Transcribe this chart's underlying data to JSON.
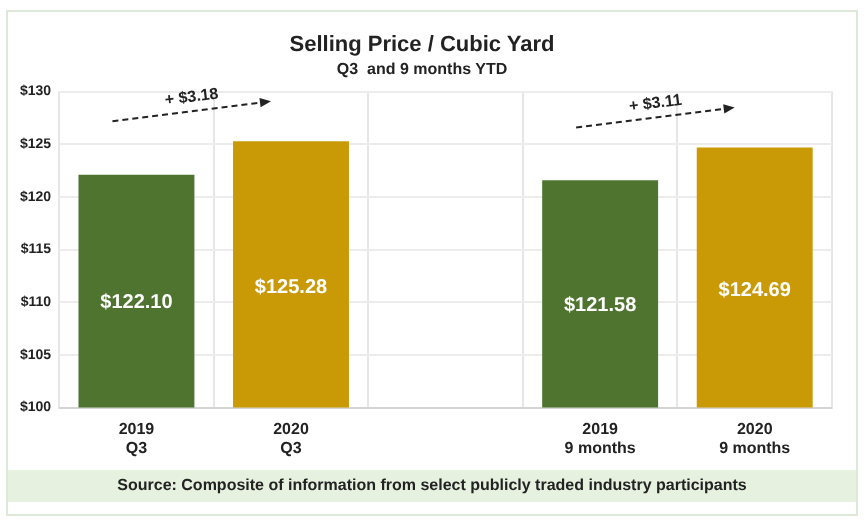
{
  "chart_data": {
    "type": "bar",
    "title": "Selling Price / Cubic Yard",
    "subtitle": "Q3  and 9 months YTD",
    "categories": [
      "2019\nQ3",
      "2020\nQ3",
      null,
      "2019\n9 months",
      "2020\n9 months"
    ],
    "values": [
      122.1,
      125.28,
      null,
      121.58,
      124.69
    ],
    "colors": [
      "#4e7430",
      "#c99a06",
      null,
      "#4e7430",
      "#c99a06"
    ],
    "value_labels": [
      "$122.10",
      "$125.28",
      null,
      "$121.58",
      "$124.69"
    ],
    "ylim": [
      100,
      130
    ],
    "yticks": [
      {
        "value": 100,
        "label": "$100"
      },
      {
        "value": 105,
        "label": "$105"
      },
      {
        "value": 110,
        "label": "$110"
      },
      {
        "value": 115,
        "label": "$115"
      },
      {
        "value": 120,
        "label": "$120"
      },
      {
        "value": 125,
        "label": "$125"
      },
      {
        "value": 130,
        "label": "$130"
      }
    ],
    "grid": "y",
    "annotations": [
      "+ $3.18",
      "+ $3.11",
      "Source: Composite of information from select publicly traded industry participants"
    ]
  }
}
